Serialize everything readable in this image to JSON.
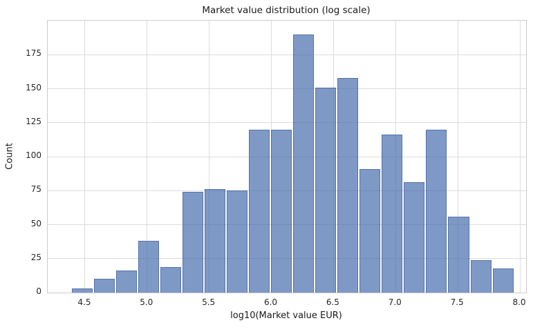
{
  "chart_data": {
    "type": "bar",
    "subtype": "histogram",
    "title": "Market value distribution (log scale)",
    "xlabel": "log10(Market value EUR)",
    "ylabel": "Count",
    "bin_edges": [
      4.389,
      4.567,
      4.745,
      4.924,
      5.102,
      5.28,
      5.458,
      5.636,
      5.815,
      5.993,
      6.171,
      6.349,
      6.527,
      6.706,
      6.884,
      7.062,
      7.24,
      7.418,
      7.597,
      7.775,
      7.953
    ],
    "counts": [
      3,
      10,
      16,
      38,
      19,
      74,
      76,
      75,
      120,
      120,
      190,
      151,
      158,
      91,
      116,
      81,
      120,
      56,
      24,
      18
    ],
    "xticks": [
      4.5,
      5.0,
      5.5,
      6.0,
      6.5,
      7.0,
      7.5,
      8.0
    ],
    "xtick_labels": [
      "4.5",
      "5.0",
      "5.5",
      "6.0",
      "6.5",
      "7.0",
      "7.5",
      "8.0"
    ],
    "yticks": [
      0,
      25,
      50,
      75,
      100,
      125,
      150,
      175
    ],
    "xlim": [
      4.2,
      8.05
    ],
    "ylim": [
      0,
      200
    ],
    "grid": true,
    "legend": false,
    "bar_color": "#4c72b0",
    "bar_alpha": 0.72,
    "bar_edge_color": "#355391",
    "grid_color": "#dcdcdc",
    "spine_color": "#cccccc",
    "text_color": "#262626"
  }
}
